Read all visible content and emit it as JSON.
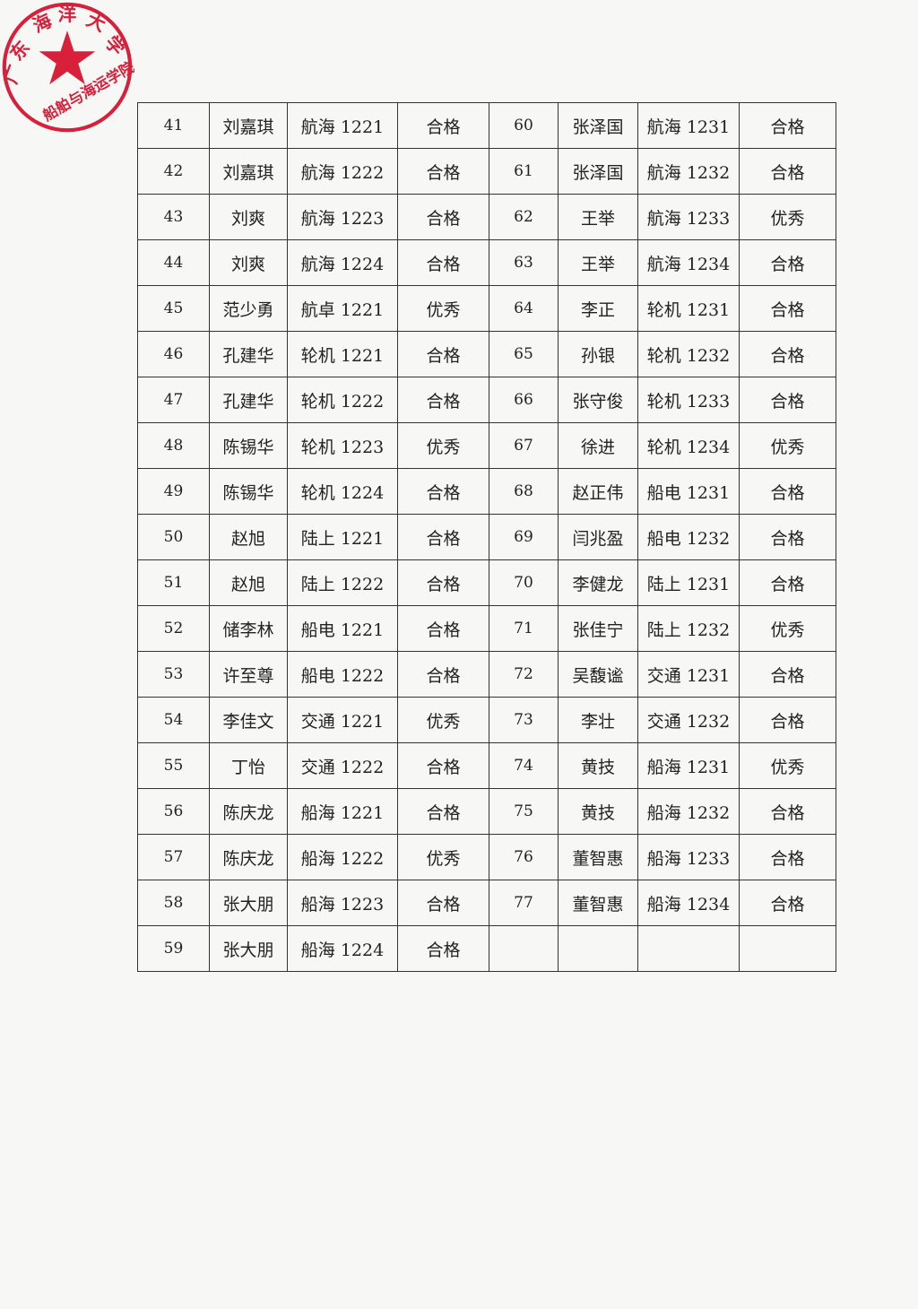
{
  "seal": {
    "outer_text": "广东海洋大学",
    "inner_text": "船舶与海运学院",
    "color": "#d8203a"
  },
  "table": {
    "rows": [
      [
        [
          "41",
          "刘嘉琪",
          "航海 1221",
          "合格"
        ],
        [
          "60",
          "张泽国",
          "航海 1231",
          "合格"
        ]
      ],
      [
        [
          "42",
          "刘嘉琪",
          "航海 1222",
          "合格"
        ],
        [
          "61",
          "张泽国",
          "航海 1232",
          "合格"
        ]
      ],
      [
        [
          "43",
          "刘爽",
          "航海 1223",
          "合格"
        ],
        [
          "62",
          "王举",
          "航海 1233",
          "优秀"
        ]
      ],
      [
        [
          "44",
          "刘爽",
          "航海 1224",
          "合格"
        ],
        [
          "63",
          "王举",
          "航海 1234",
          "合格"
        ]
      ],
      [
        [
          "45",
          "范少勇",
          "航卓 1221",
          "优秀"
        ],
        [
          "64",
          "李正",
          "轮机 1231",
          "合格"
        ]
      ],
      [
        [
          "46",
          "孔建华",
          "轮机 1221",
          "合格"
        ],
        [
          "65",
          "孙银",
          "轮机 1232",
          "合格"
        ]
      ],
      [
        [
          "47",
          "孔建华",
          "轮机 1222",
          "合格"
        ],
        [
          "66",
          "张守俊",
          "轮机 1233",
          "合格"
        ]
      ],
      [
        [
          "48",
          "陈锡华",
          "轮机 1223",
          "优秀"
        ],
        [
          "67",
          "徐进",
          "轮机 1234",
          "优秀"
        ]
      ],
      [
        [
          "49",
          "陈锡华",
          "轮机 1224",
          "合格"
        ],
        [
          "68",
          "赵正伟",
          "船电 1231",
          "合格"
        ]
      ],
      [
        [
          "50",
          "赵旭",
          "陆上 1221",
          "合格"
        ],
        [
          "69",
          "闫兆盈",
          "船电 1232",
          "合格"
        ]
      ],
      [
        [
          "51",
          "赵旭",
          "陆上 1222",
          "合格"
        ],
        [
          "70",
          "李健龙",
          "陆上 1231",
          "合格"
        ]
      ],
      [
        [
          "52",
          "储李林",
          "船电 1221",
          "合格"
        ],
        [
          "71",
          "张佳宁",
          "陆上 1232",
          "优秀"
        ]
      ],
      [
        [
          "53",
          "许至尊",
          "船电 1222",
          "合格"
        ],
        [
          "72",
          "吴馥谧",
          "交通 1231",
          "合格"
        ]
      ],
      [
        [
          "54",
          "李佳文",
          "交通 1221",
          "优秀"
        ],
        [
          "73",
          "李壮",
          "交通 1232",
          "合格"
        ]
      ],
      [
        [
          "55",
          "丁怡",
          "交通 1222",
          "合格"
        ],
        [
          "74",
          "黄技",
          "船海 1231",
          "优秀"
        ]
      ],
      [
        [
          "56",
          "陈庆龙",
          "船海 1221",
          "合格"
        ],
        [
          "75",
          "黄技",
          "船海 1232",
          "合格"
        ]
      ],
      [
        [
          "57",
          "陈庆龙",
          "船海 1222",
          "优秀"
        ],
        [
          "76",
          "董智惠",
          "船海 1233",
          "合格"
        ]
      ],
      [
        [
          "58",
          "张大朋",
          "船海 1223",
          "合格"
        ],
        [
          "77",
          "董智惠",
          "船海 1234",
          "合格"
        ]
      ],
      [
        [
          "59",
          "张大朋",
          "船海 1224",
          "合格"
        ],
        [
          "",
          "",
          "",
          ""
        ]
      ]
    ]
  }
}
